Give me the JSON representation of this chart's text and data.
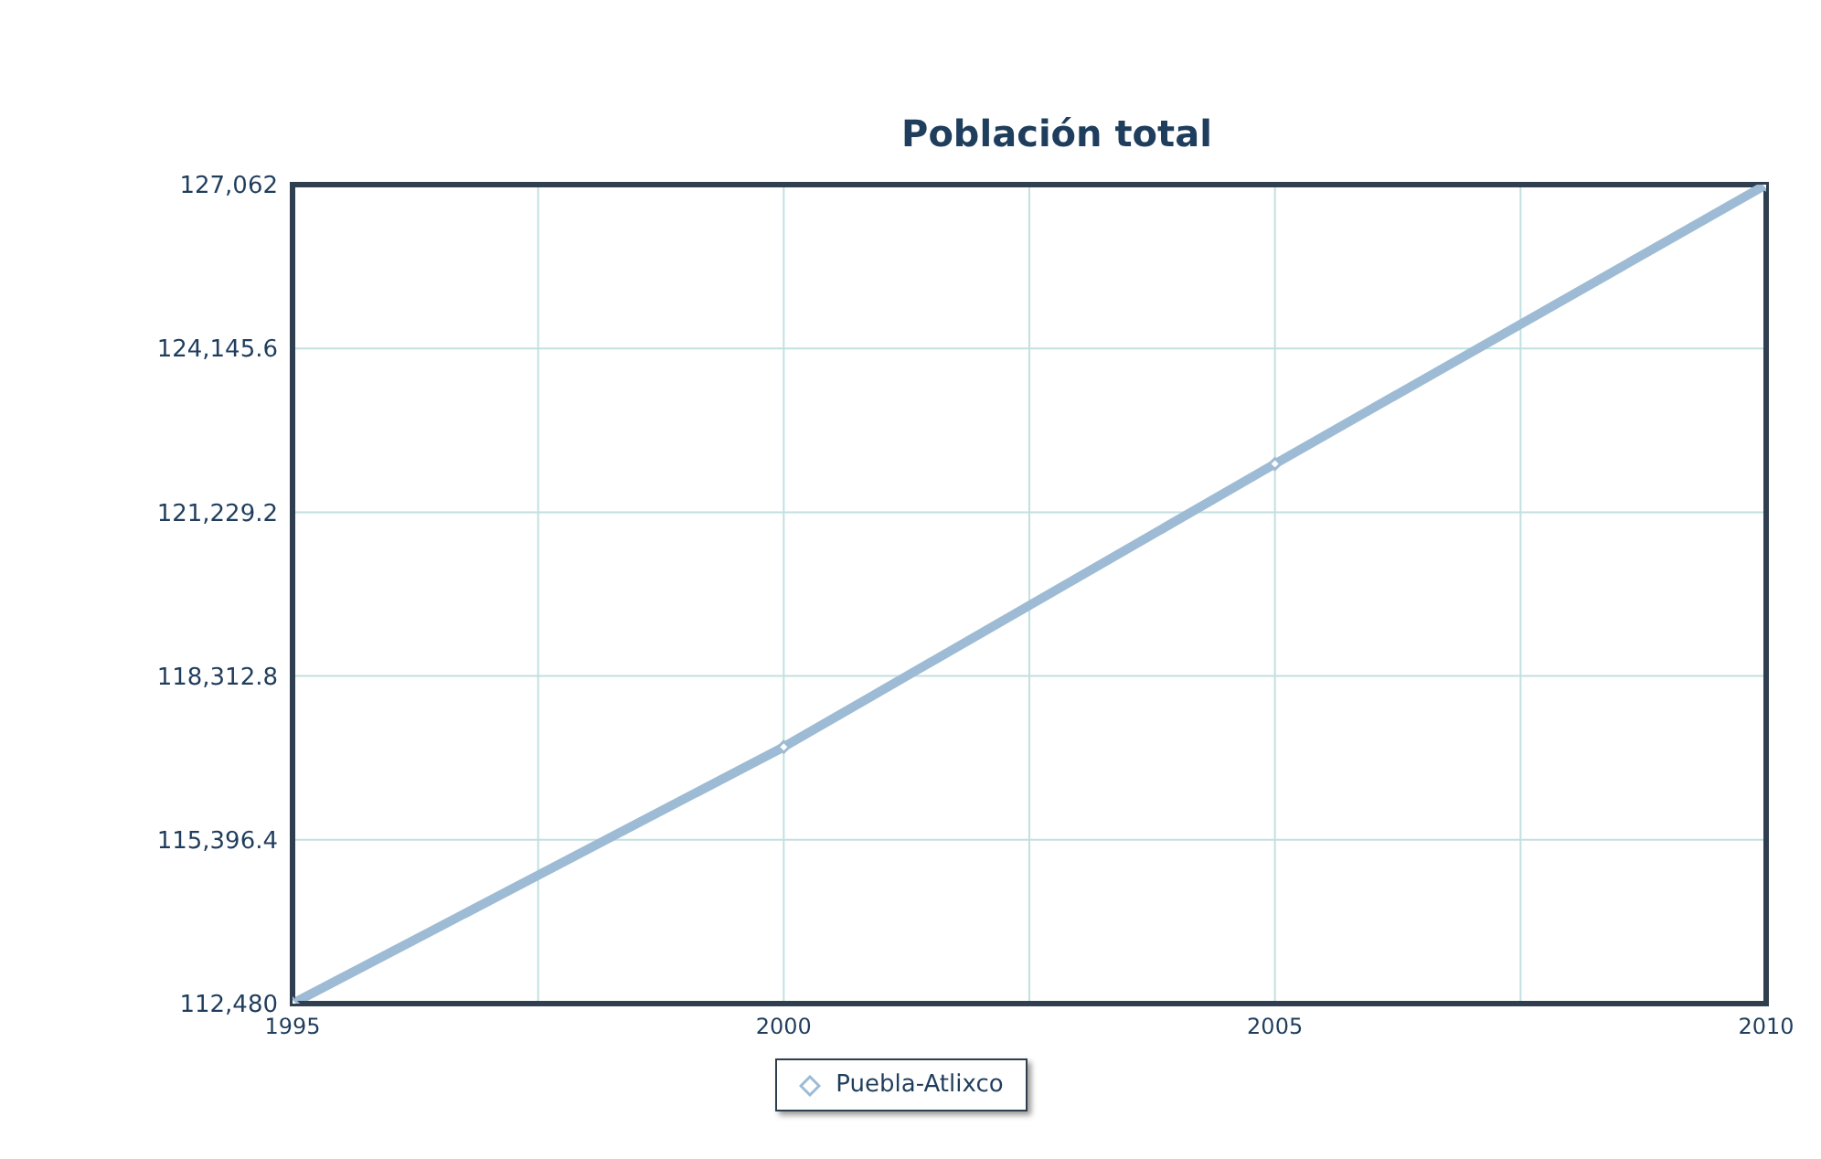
{
  "chart_data": {
    "type": "line",
    "title": "Población total",
    "x": [
      1995,
      2000,
      2005,
      2010
    ],
    "series": [
      {
        "name": "Puebla-Atlixco",
        "color": "#9dbbd4",
        "values": [
          112480,
          117050,
          122090,
          127062
        ]
      }
    ],
    "xlim": [
      1995,
      2010
    ],
    "xticks": [
      1995,
      {
        "value": 1997.5,
        "label": null
      },
      2000,
      {
        "value": 2002.5,
        "label": null
      },
      2005,
      {
        "value": 2007.5,
        "label": null
      },
      2010
    ],
    "ylim": [
      112480,
      127062
    ],
    "yticks": [
      {
        "value": 112480,
        "label": "112,480"
      },
      {
        "value": 115396.4,
        "label": "115,396.4"
      },
      {
        "value": 118312.8,
        "label": "118,312.8"
      },
      {
        "value": 121229.2,
        "label": "121,229.2"
      },
      {
        "value": 124145.6,
        "label": "124,145.6"
      },
      {
        "value": 127062,
        "label": "127,062"
      }
    ],
    "grid": true,
    "legend": "bottom",
    "marker": "diamond",
    "line_style": "solid"
  }
}
